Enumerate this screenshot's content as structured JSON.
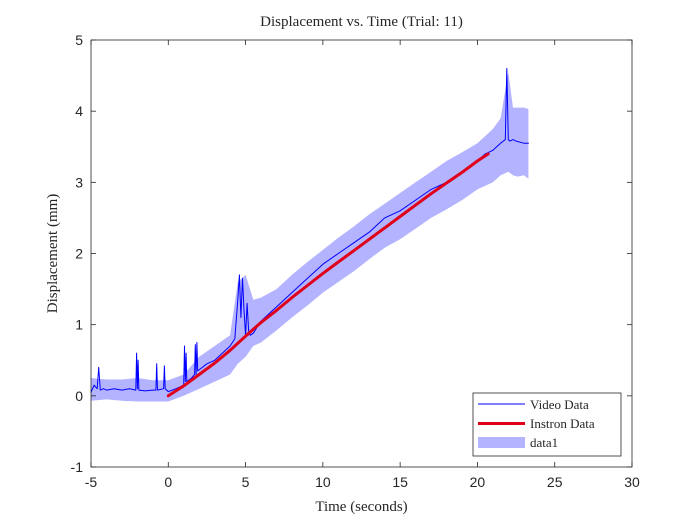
{
  "chart_data": {
    "type": "line",
    "title": "Displacement vs. Time (Trial: 11)",
    "xlabel": "Time (seconds)",
    "ylabel": "Displacement (mm)",
    "xlim": [
      -5,
      30
    ],
    "ylim": [
      -1,
      5
    ],
    "xticks": [
      -5,
      0,
      5,
      10,
      15,
      20,
      25,
      30
    ],
    "xtick_labels": [
      "-5",
      "0",
      "5",
      "10",
      "15",
      "20",
      "25",
      "30"
    ],
    "yticks": [
      -1,
      0,
      1,
      2,
      3,
      4,
      5
    ],
    "ytick_labels": [
      "-1",
      "0",
      "1",
      "2",
      "3",
      "4",
      "5"
    ],
    "grid": false,
    "legend_position": "bottom-right",
    "series": [
      {
        "name": "Video Data",
        "kind": "line",
        "color": "#0000ff",
        "x": [
          -5.0,
          -4.8,
          -4.6,
          -4.5,
          -4.4,
          -4.2,
          -4.0,
          -3.5,
          -3.0,
          -2.5,
          -2.1,
          -2.05,
          -2.0,
          -1.95,
          -1.9,
          -1.5,
          -1.0,
          -0.8,
          -0.75,
          -0.7,
          -0.3,
          -0.25,
          -0.2,
          0.0,
          0.5,
          1.0,
          1.05,
          1.1,
          1.15,
          1.2,
          1.5,
          1.7,
          1.75,
          1.8,
          1.85,
          1.9,
          2.2,
          2.5,
          3.0,
          3.5,
          4.0,
          4.3,
          4.5,
          4.6,
          4.7,
          4.8,
          4.9,
          5.0,
          5.1,
          5.2,
          5.3,
          5.5,
          6.0,
          7.0,
          8.0,
          9.0,
          10.0,
          11.0,
          12.0,
          13.0,
          14.0,
          15.0,
          16.0,
          17.0,
          18.0,
          19.0,
          20.0,
          20.5,
          21.0,
          21.5,
          21.8,
          21.9,
          22.0,
          22.1,
          22.3,
          22.5,
          23.0,
          23.3
        ],
        "y": [
          0.05,
          0.15,
          0.1,
          0.4,
          0.08,
          0.1,
          0.08,
          0.1,
          0.08,
          0.1,
          0.08,
          0.6,
          0.1,
          0.5,
          0.08,
          0.07,
          0.08,
          0.08,
          0.45,
          0.08,
          0.1,
          0.42,
          0.1,
          0.06,
          0.1,
          0.15,
          0.7,
          0.2,
          0.6,
          0.2,
          0.25,
          0.3,
          0.72,
          0.3,
          0.75,
          0.35,
          0.4,
          0.45,
          0.5,
          0.6,
          0.7,
          0.8,
          1.35,
          1.7,
          1.1,
          1.65,
          1.2,
          0.85,
          1.3,
          0.9,
          0.85,
          0.88,
          1.05,
          1.25,
          1.45,
          1.65,
          1.85,
          2.0,
          2.15,
          2.3,
          2.5,
          2.6,
          2.75,
          2.9,
          3.0,
          3.15,
          3.3,
          3.4,
          3.45,
          3.55,
          3.6,
          4.6,
          3.6,
          3.58,
          3.6,
          3.58,
          3.55,
          3.55
        ]
      },
      {
        "name": "Instron Data",
        "kind": "line",
        "color": "#e0001a",
        "x": [
          0.0,
          1.0,
          2.0,
          3.0,
          4.0,
          5.0,
          6.0,
          7.0,
          8.0,
          9.0,
          10.0,
          11.0,
          12.0,
          13.0,
          14.0,
          15.0,
          16.0,
          17.0,
          18.0,
          19.0,
          20.0,
          20.7
        ],
        "y": [
          0.0,
          0.14,
          0.3,
          0.46,
          0.64,
          0.84,
          1.03,
          1.2,
          1.38,
          1.55,
          1.72,
          1.88,
          2.04,
          2.2,
          2.36,
          2.52,
          2.68,
          2.84,
          2.99,
          3.14,
          3.3,
          3.4
        ]
      },
      {
        "name": "data1",
        "kind": "band",
        "color": "#b3b3ff",
        "x": [
          -5.0,
          -4.0,
          -3.0,
          -2.0,
          -1.0,
          0.0,
          1.0,
          2.0,
          3.0,
          4.0,
          4.5,
          5.0,
          5.5,
          6.0,
          7.0,
          8.0,
          9.0,
          10.0,
          11.0,
          12.0,
          13.0,
          14.0,
          15.0,
          16.0,
          17.0,
          18.0,
          19.0,
          20.0,
          21.0,
          21.5,
          22.0,
          22.3,
          22.6,
          23.0,
          23.3
        ],
        "lower": [
          -0.07,
          -0.05,
          -0.07,
          -0.08,
          -0.08,
          -0.08,
          0.0,
          0.1,
          0.2,
          0.3,
          0.45,
          0.55,
          0.7,
          0.75,
          0.92,
          1.1,
          1.27,
          1.45,
          1.6,
          1.75,
          1.92,
          2.08,
          2.2,
          2.35,
          2.5,
          2.62,
          2.75,
          2.9,
          3.0,
          3.1,
          3.15,
          3.1,
          3.08,
          3.1,
          3.05
        ],
        "upper": [
          0.25,
          0.23,
          0.23,
          0.25,
          0.22,
          0.22,
          0.3,
          0.55,
          0.7,
          0.85,
          1.6,
          1.7,
          1.35,
          1.38,
          1.5,
          1.7,
          1.88,
          2.05,
          2.22,
          2.38,
          2.55,
          2.7,
          2.85,
          3.0,
          3.15,
          3.3,
          3.42,
          3.55,
          3.75,
          3.9,
          4.55,
          4.05,
          4.05,
          4.05,
          4.03
        ]
      }
    ]
  }
}
